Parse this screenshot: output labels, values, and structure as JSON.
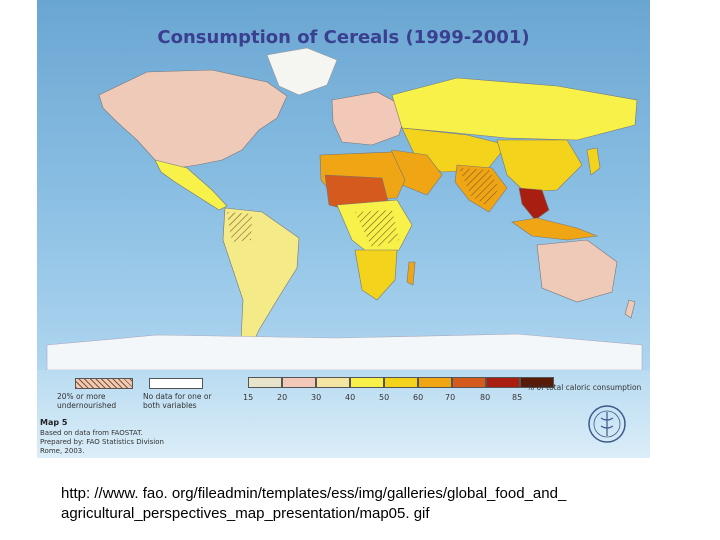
{
  "map": {
    "title": "Consumption of Cereals  (1999-2001)",
    "map_label": "Map 5",
    "credit_lines": [
      "Based on data from FAOSTAT.",
      "Prepared by: FAO Statistics Division",
      "Rome, 2003."
    ]
  },
  "legend": {
    "undernourished_label": "20% or more undernourished",
    "no_data_label": "No data for one or both variables",
    "scale_caption": "% of total caloric consumption",
    "ticks": [
      "15",
      "20",
      "30",
      "40",
      "50",
      "60",
      "70",
      "80",
      "85"
    ],
    "colors": [
      "#e8e4cc",
      "#f2c9b8",
      "#f4e6a2",
      "#f7f14a",
      "#f4d31c",
      "#f0a614",
      "#d45a1e",
      "#a81e10",
      "#5a1a08"
    ]
  },
  "caption": {
    "url_line1": "http: //www. fao. org/fileadmin/templates/ess/img/galleries/global_food_and_",
    "url_line2": "agricultural_perspectives_map_presentation/map05. gif"
  }
}
